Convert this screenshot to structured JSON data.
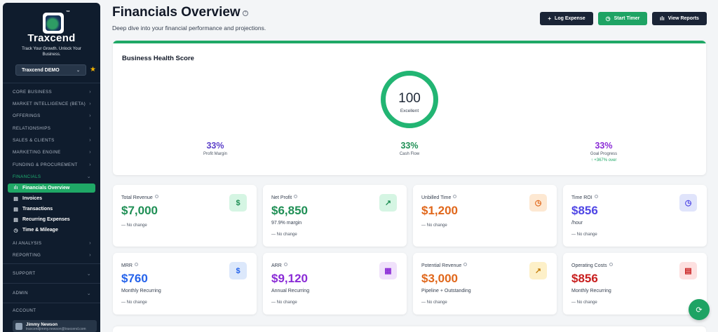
{
  "sidebar": {
    "brand": "Traxcend",
    "tm": "™",
    "tagline": "Track Your Growth. Unlock Your Business.",
    "org_select": "Traxcend DEMO",
    "sections": [
      {
        "label": "CORE BUSINESS"
      },
      {
        "label": "MARKET INTELLIGENCE (BETA)"
      },
      {
        "label": "OFFERINGS"
      },
      {
        "label": "RELATIONSHIPS"
      },
      {
        "label": "SALES & CLIENTS"
      },
      {
        "label": "MARKETING ENGINE"
      },
      {
        "label": "FUNDING & PROCUREMENT"
      },
      {
        "label": "FINANCIALS"
      }
    ],
    "financials_items": [
      {
        "label": "Financials Overview",
        "icon": "bar-chart-icon"
      },
      {
        "label": "Invoices",
        "icon": "document-icon"
      },
      {
        "label": "Transactions",
        "icon": "receipt-icon"
      },
      {
        "label": "Recurring Expenses",
        "icon": "receipt-icon"
      },
      {
        "label": "Time & Mileage",
        "icon": "clock-icon"
      }
    ],
    "after_sections": [
      {
        "label": "AI ANALYSIS"
      },
      {
        "label": "REPORTING"
      }
    ],
    "support": "SUPPORT",
    "admin": "ADMIN",
    "account": "ACCOUNT",
    "user_name": "Jimmy Newson",
    "user_email": "traxcendjimmy.newson@traxcend.com"
  },
  "header": {
    "title": "Financials Overview",
    "subtitle": "Deep dive into your financial performance and projections.",
    "buttons": [
      {
        "label": "Log Expense",
        "icon": "plus-icon"
      },
      {
        "label": "Start Timer",
        "icon": "clock-icon"
      },
      {
        "label": "View Reports",
        "icon": "bar-chart-icon"
      }
    ]
  },
  "health": {
    "title": "Business Health Score",
    "score": "100",
    "score_label": "Excellent",
    "metrics": [
      {
        "value": "33%",
        "label": "Profit Margin",
        "color": "#5b3fc9",
        "extra": ""
      },
      {
        "value": "33%",
        "label": "Cash Flow",
        "color": "#1f8f55",
        "extra": ""
      },
      {
        "value": "33%",
        "label": "Goal Progress",
        "color": "#8a2bd6",
        "extra": "↑ +367% over"
      }
    ]
  },
  "cards": [
    {
      "title": "Total Revenue",
      "value": "$7,000",
      "sub": "",
      "change": "— No change",
      "color": "#1f8f55",
      "icon": "$",
      "icon_name": "dollar-icon",
      "icon_bg": "#d5f5e3",
      "icon_color": "#1f8f55"
    },
    {
      "title": "Net Profit",
      "value": "$6,850",
      "sub": "97.9% margin",
      "change": "— No change",
      "color": "#1f8f55",
      "icon": "↗",
      "icon_name": "trending-up-icon",
      "icon_bg": "#d5f5e3",
      "icon_color": "#1f8f55"
    },
    {
      "title": "Unbilled Time",
      "value": "$1,200",
      "sub": "",
      "change": "— No change",
      "color": "#e0671b",
      "icon": "◷",
      "icon_name": "clock-icon",
      "icon_bg": "#fde8d2",
      "icon_color": "#e0671b"
    },
    {
      "title": "Time ROI",
      "value": "$856",
      "sub": "/hour",
      "change": "— No change",
      "color": "#4f46e5",
      "icon": "◷",
      "icon_name": "clock-icon",
      "icon_bg": "#e0e4fb",
      "icon_color": "#4f46e5"
    },
    {
      "title": "MRR",
      "value": "$760",
      "sub": "Monthly Recurring",
      "change": "— No change",
      "color": "#2563eb",
      "icon": "$",
      "icon_name": "dollar-icon",
      "icon_bg": "#dce8fb",
      "icon_color": "#2563eb"
    },
    {
      "title": "ARR",
      "value": "$9,120",
      "sub": "Annual Recurring",
      "change": "— No change",
      "color": "#8a2bd6",
      "icon": "▦",
      "icon_name": "calendar-icon",
      "icon_bg": "#f0e1fb",
      "icon_color": "#8a2bd6"
    },
    {
      "title": "Potential Revenue",
      "value": "$3,000",
      "sub": "Pipeline + Outstanding",
      "change": "— No change",
      "color": "#e0671b",
      "icon": "↗",
      "icon_name": "trending-up-icon",
      "icon_bg": "#fdf0c8",
      "icon_color": "#c47d0a"
    },
    {
      "title": "Operating Costs",
      "value": "$856",
      "sub": "Monthly Recurring",
      "change": "— No change",
      "color": "#c81e1e",
      "icon": "▤",
      "icon_name": "receipt-icon",
      "icon_bg": "#fde0e0",
      "icon_color": "#c81e1e"
    }
  ],
  "chat_icon": "⟳"
}
